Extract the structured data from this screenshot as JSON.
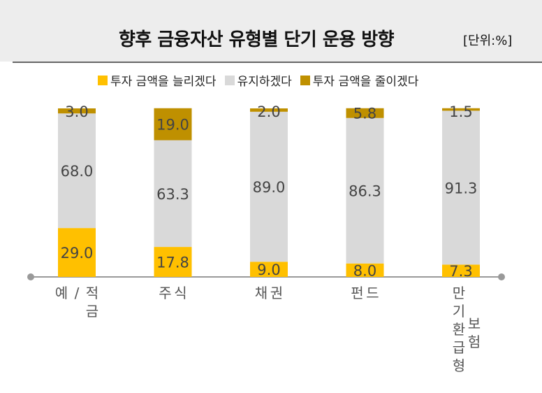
{
  "chart_data": {
    "type": "bar",
    "stacked": true,
    "title": "향후 금융자산 유형별 단기 운용 방향",
    "unit": "[단위:%]",
    "categories": [
      "예/적금",
      "주식",
      "채권",
      "펀드",
      "만기환급형 보험"
    ],
    "category_lines": [
      [
        "예",
        "/",
        "적금"
      ],
      [
        "주",
        "식"
      ],
      [
        "채",
        "권"
      ],
      [
        "펀",
        "드"
      ],
      [
        "만기환급형",
        "보험"
      ]
    ],
    "ylim": [
      0,
      100
    ],
    "legend_position": "top",
    "series": [
      {
        "name": "투자 금액을 늘리겠다",
        "color": "#FFC000",
        "values": [
          29.0,
          17.8,
          9.0,
          8.0,
          7.3
        ],
        "labels": [
          "29.0",
          "17.8",
          "9.0",
          "8.0",
          "7.3"
        ]
      },
      {
        "name": "유지하겠다",
        "color": "#D9D9D9",
        "values": [
          68.0,
          63.3,
          89.0,
          86.3,
          91.3
        ],
        "labels": [
          "68.0",
          "63.3",
          "89.0",
          "86.3",
          "91.3"
        ]
      },
      {
        "name": "투자 금액을 줄이겠다",
        "color": "#BF9000",
        "values": [
          3.0,
          19.0,
          2.0,
          5.8,
          1.5
        ],
        "labels": [
          "3.0",
          "19.0",
          "2.0",
          "5.8",
          "1.5"
        ]
      }
    ]
  }
}
